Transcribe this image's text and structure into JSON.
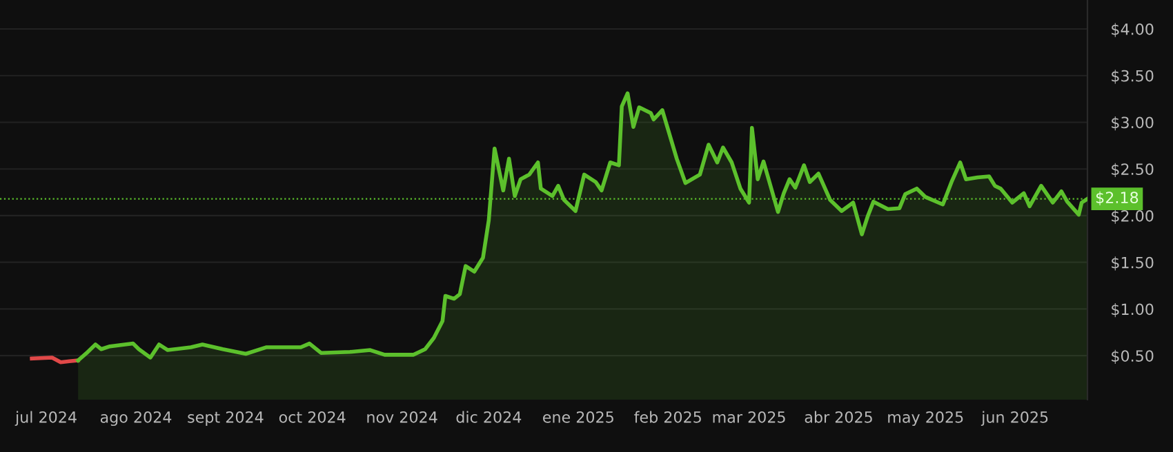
{
  "chart_data": {
    "type": "area",
    "grid": "y",
    "xlim": [
      "2024-06-15",
      "2025-06-26"
    ],
    "ylim": [
      0.03,
      4.31
    ],
    "xticks": [
      {
        "value": "2024-07-01",
        "label": "jul 2024"
      },
      {
        "value": "2024-08-01",
        "label": "ago 2024"
      },
      {
        "value": "2024-09-01",
        "label": "sept 2024"
      },
      {
        "value": "2024-10-01",
        "label": "oct 2024"
      },
      {
        "value": "2024-11-01",
        "label": "nov 2024"
      },
      {
        "value": "2024-12-01",
        "label": "dic 2024"
      },
      {
        "value": "2025-01-01",
        "label": "ene 2025"
      },
      {
        "value": "2025-02-01",
        "label": "feb 2025"
      },
      {
        "value": "2025-03-01",
        "label": "mar 2025"
      },
      {
        "value": "2025-04-01",
        "label": "abr 2025"
      },
      {
        "value": "2025-05-01",
        "label": "may 2025"
      },
      {
        "value": "2025-06-01",
        "label": "jun 2025"
      }
    ],
    "yticks": [
      {
        "value": 0.5,
        "label": "$0.50"
      },
      {
        "value": 1.0,
        "label": "$1.00"
      },
      {
        "value": 1.5,
        "label": "$1.50"
      },
      {
        "value": 2.0,
        "label": "$2.00"
      },
      {
        "value": 2.5,
        "label": "$2.50"
      },
      {
        "value": 3.0,
        "label": "$3.00"
      },
      {
        "value": 3.5,
        "label": "$3.50"
      },
      {
        "value": 4.0,
        "label": "$4.00"
      }
    ],
    "ref_lines": [
      {
        "axis": "y",
        "value": 2.18,
        "label": "$2.18",
        "color": "#5cc02c",
        "line_style": "dotted"
      }
    ],
    "series": [
      {
        "type": "line",
        "color": "#e04848",
        "x": [
          "2024-06-26",
          "2024-07-03",
          "2024-07-06",
          "2024-07-09",
          "2024-07-12"
        ],
        "values": [
          0.47,
          0.48,
          0.43,
          0.44,
          0.45
        ]
      },
      {
        "color": "#5cc02c",
        "x": [
          "2024-07-12",
          "2024-07-15",
          "2024-07-18",
          "2024-07-20",
          "2024-07-23",
          "2024-07-31",
          "2024-08-02",
          "2024-08-06",
          "2024-08-09",
          "2024-08-12",
          "2024-08-20",
          "2024-08-24",
          "2024-08-31",
          "2024-09-08",
          "2024-09-15",
          "2024-09-22",
          "2024-09-27",
          "2024-09-30",
          "2024-10-04",
          "2024-10-14",
          "2024-10-21",
          "2024-10-26",
          "2024-11-01",
          "2024-11-05",
          "2024-11-09",
          "2024-11-12",
          "2024-11-15",
          "2024-11-16",
          "2024-11-19",
          "2024-11-21",
          "2024-11-23",
          "2024-11-26",
          "2024-11-29",
          "2024-12-01",
          "2024-12-03",
          "2024-12-06",
          "2024-12-08",
          "2024-12-10",
          "2024-12-12",
          "2024-12-15",
          "2024-12-18",
          "2024-12-19",
          "2024-12-23",
          "2024-12-25",
          "2024-12-27",
          "2024-12-31",
          "2025-01-03",
          "2025-01-07",
          "2025-01-09",
          "2025-01-12",
          "2025-01-15",
          "2025-01-16",
          "2025-01-18",
          "2025-01-20",
          "2025-01-22",
          "2025-01-26",
          "2025-01-27",
          "2025-01-30",
          "2025-02-04",
          "2025-02-07",
          "2025-02-12",
          "2025-02-15",
          "2025-02-18",
          "2025-02-20",
          "2025-02-23",
          "2025-02-26",
          "2025-03-01",
          "2025-03-02",
          "2025-03-04",
          "2025-03-06",
          "2025-03-11",
          "2025-03-13",
          "2025-03-15",
          "2025-03-17",
          "2025-03-20",
          "2025-03-22",
          "2025-03-25",
          "2025-03-29",
          "2025-04-02",
          "2025-04-06",
          "2025-04-09",
          "2025-04-11",
          "2025-04-13",
          "2025-04-18",
          "2025-04-22",
          "2025-04-24",
          "2025-04-28",
          "2025-05-01",
          "2025-05-07",
          "2025-05-10",
          "2025-05-13",
          "2025-05-15",
          "2025-05-19",
          "2025-05-23",
          "2025-05-25",
          "2025-05-27",
          "2025-05-31",
          "2025-06-04",
          "2025-06-06",
          "2025-06-10",
          "2025-06-14",
          "2025-06-17",
          "2025-06-19",
          "2025-06-23",
          "2025-06-24",
          "2025-06-26"
        ],
        "values": [
          0.45,
          0.53,
          0.62,
          0.57,
          0.6,
          0.63,
          0.57,
          0.48,
          0.62,
          0.56,
          0.59,
          0.62,
          0.57,
          0.52,
          0.59,
          0.59,
          0.59,
          0.63,
          0.53,
          0.54,
          0.56,
          0.51,
          0.51,
          0.51,
          0.57,
          0.69,
          0.87,
          1.14,
          1.11,
          1.16,
          1.46,
          1.4,
          1.55,
          1.95,
          2.72,
          2.27,
          2.61,
          2.21,
          2.39,
          2.44,
          2.57,
          2.29,
          2.21,
          2.32,
          2.17,
          2.05,
          2.44,
          2.36,
          2.27,
          2.57,
          2.54,
          3.17,
          3.31,
          2.95,
          3.16,
          3.1,
          3.03,
          3.13,
          2.61,
          2.35,
          2.44,
          2.76,
          2.57,
          2.73,
          2.57,
          2.29,
          2.14,
          2.94,
          2.39,
          2.58,
          2.04,
          2.24,
          2.39,
          2.3,
          2.54,
          2.36,
          2.45,
          2.17,
          2.05,
          2.14,
          1.8,
          1.99,
          2.15,
          2.07,
          2.08,
          2.23,
          2.29,
          2.2,
          2.12,
          2.36,
          2.57,
          2.39,
          2.41,
          2.42,
          2.32,
          2.29,
          2.14,
          2.24,
          2.1,
          2.32,
          2.14,
          2.26,
          2.15,
          2.01,
          2.14,
          2.18
        ]
      }
    ]
  }
}
